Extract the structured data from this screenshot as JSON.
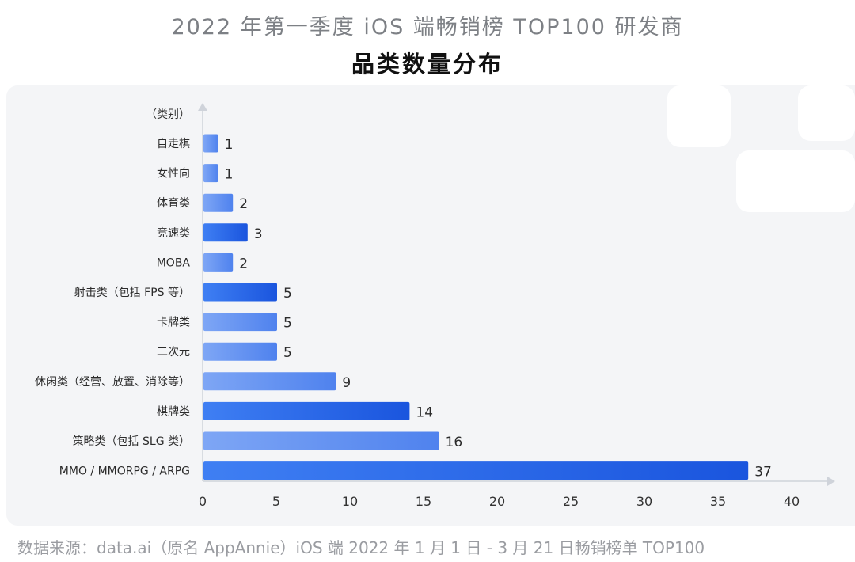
{
  "header": {
    "title": "2022 年第一季度 iOS 端畅销榜 TOP100 研发商",
    "subtitle": "品类数量分布"
  },
  "footer": {
    "source": "数据来源：data.ai（原名 AppAnnie）iOS 端 2022 年 1 月 1 日 - 3 月 21 日畅销榜单 TOP100"
  },
  "colors": {
    "bar_dark": "#1f5fe0",
    "bar_light": "#5d8ef0",
    "axis": "#cfd3da",
    "text": "#2b2b2b"
  },
  "chart_data": {
    "type": "bar",
    "orientation": "horizontal",
    "title": "2022 年第一季度 iOS 端畅销榜 TOP100 研发商 品类数量分布",
    "ylabel": "（类别）",
    "xlabel": "",
    "xlim": [
      0,
      40
    ],
    "xticks": [
      0,
      5,
      10,
      15,
      20,
      25,
      30,
      35,
      40
    ],
    "grid": false,
    "categories": [
      "自走棋",
      "女性向",
      "体育类",
      "竞速类",
      "MOBA",
      "射击类（包括 FPS 等）",
      "卡牌类",
      "二次元",
      "休闲类（经营、放置、消除等）",
      "棋牌类",
      "策略类（包括 SLG 类）",
      "MMO / MMORPG / ARPG"
    ],
    "values": [
      1,
      1,
      2,
      3,
      2,
      5,
      5,
      5,
      9,
      14,
      16,
      37
    ],
    "value_labels": [
      "1",
      "1",
      "2",
      "3",
      "2",
      "5",
      "5",
      "5",
      "9",
      "14",
      "16",
      "37"
    ],
    "tick_labels": [
      "0",
      "5",
      "10",
      "15",
      "20",
      "25",
      "30",
      "35",
      "40"
    ]
  }
}
